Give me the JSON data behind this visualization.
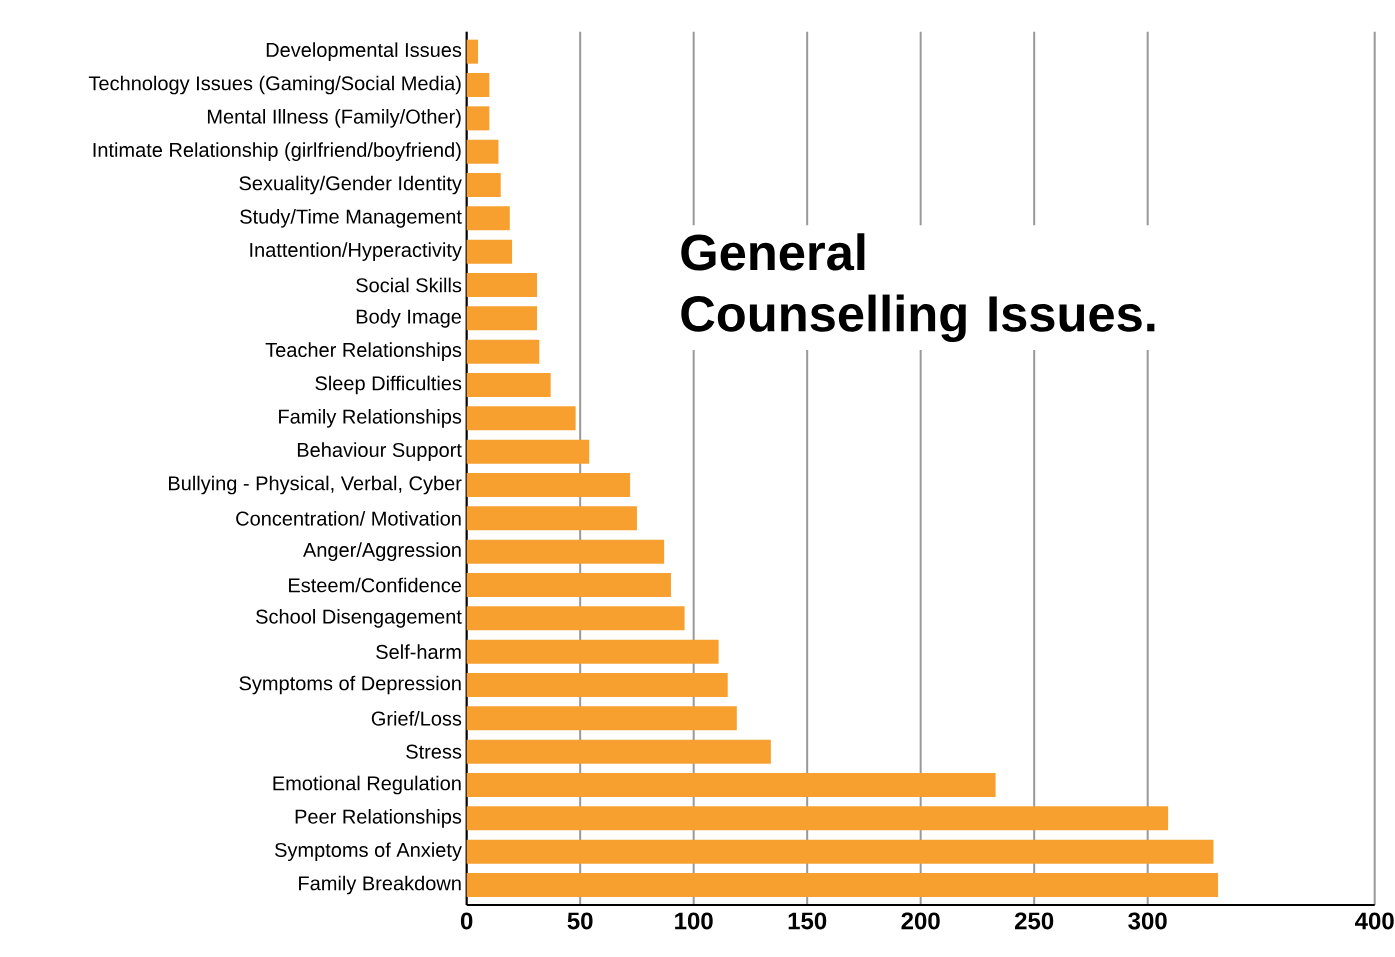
{
  "chart_data": {
    "type": "bar",
    "orientation": "horizontal",
    "title": "General Counselling Issues.",
    "categories": [
      "Developmental Issues",
      "Technology Issues (Gaming/Social Media)",
      "Mental Illness (Family/Other)",
      "Intimate Relationship (girlfriend/boyfriend)",
      "Sexuality/Gender Identity",
      "Study/Time Management",
      "Inattention/Hyperactivity",
      "Social Skills",
      "Body Image",
      "Teacher Relationships",
      "Sleep Difficulties",
      "Family Relationships",
      "Behaviour Support",
      "Bullying - Physical, Verbal, Cyber",
      "Concentration/ Motivation",
      "Anger/Aggression",
      "Esteem/Confidence",
      "School Disengagement",
      "Self-harm",
      "Symptoms of Depression",
      "Grief/Loss",
      "Stress",
      "Emotional Regulation",
      "Peer Relationships",
      "Symptoms of Anxiety",
      "Family Breakdown"
    ],
    "values": [
      5,
      10,
      10,
      14,
      15,
      19,
      20,
      31,
      31,
      32,
      37,
      48,
      54,
      72,
      75,
      87,
      90,
      96,
      111,
      115,
      119,
      134,
      233,
      309,
      329,
      331
    ],
    "color": "#f7a02f",
    "xlim": [
      0,
      400
    ],
    "xticks": [
      0,
      50,
      100,
      150,
      200,
      250,
      300,
      400
    ],
    "grid": "x"
  }
}
